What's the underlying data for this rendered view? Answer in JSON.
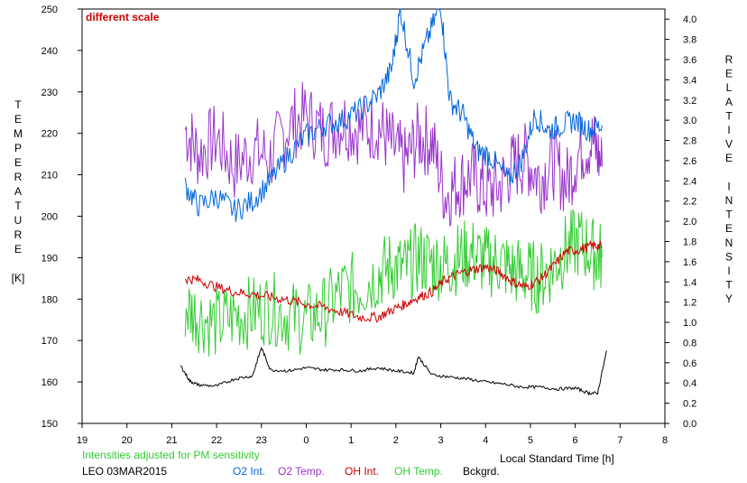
{
  "chart_data": {
    "type": "line",
    "annotation": "different scale",
    "left_axis_label": [
      "T",
      "E",
      "M",
      "P",
      "E",
      "R",
      "A",
      "T",
      "U",
      "R",
      "E",
      "",
      "[K]"
    ],
    "right_axis_label": [
      "R",
      "E",
      "L",
      "A",
      "T",
      "I",
      "V",
      "E",
      "",
      "I",
      "N",
      "T",
      "E",
      "N",
      "S",
      "I",
      "T",
      "Y"
    ],
    "xlabel": "Local Standard Time [h]",
    "x_ticks": [
      "19",
      "20",
      "21",
      "22",
      "23",
      "0",
      "1",
      "2",
      "3",
      "4",
      "5",
      "6",
      "7",
      "8"
    ],
    "x_tick_values": [
      19,
      20,
      21,
      22,
      23,
      24,
      25,
      26,
      27,
      28,
      29,
      30,
      31,
      32
    ],
    "xlim": [
      19,
      32
    ],
    "ylim_left": [
      150,
      250
    ],
    "y_ticks_left": [
      150,
      160,
      170,
      180,
      190,
      200,
      210,
      220,
      230,
      240,
      250
    ],
    "ylim_right": [
      0.0,
      4.1
    ],
    "y_ticks_right": [
      "0.0",
      "0.2",
      "0.4",
      "0.6",
      "0.8",
      "1.0",
      "1.2",
      "1.4",
      "1.6",
      "1.8",
      "2.0",
      "2.2",
      "2.4",
      "2.6",
      "2.8",
      "3.0",
      "3.2",
      "3.4",
      "3.6",
      "3.8",
      "4.0"
    ],
    "note": "Intensities adjusted for PM sensitivity",
    "station": "LEO 03MAR2015",
    "series": [
      {
        "name": "O2 Int.",
        "color": "#0066dd",
        "axis": "right",
        "x": [
          21.3,
          21.6,
          22.0,
          22.4,
          22.8,
          23.2,
          23.6,
          24.0,
          24.4,
          24.8,
          25.2,
          25.6,
          25.9,
          26.1,
          26.4,
          26.7,
          27.0,
          27.2,
          27.5,
          27.8,
          28.1,
          28.5,
          28.8,
          29.1,
          29.4,
          29.7,
          30.0,
          30.3,
          30.6
        ],
        "y": [
          2.35,
          2.15,
          2.25,
          2.1,
          2.2,
          2.4,
          2.65,
          2.85,
          2.95,
          3.0,
          3.1,
          3.25,
          3.5,
          4.1,
          3.4,
          3.8,
          4.15,
          3.2,
          3.05,
          2.7,
          2.65,
          2.4,
          2.6,
          3.05,
          2.9,
          2.95,
          3.0,
          2.9,
          2.95
        ]
      },
      {
        "name": "O2 Temp.",
        "color": "#9933cc",
        "axis": "left",
        "x": [
          21.3,
          21.6,
          22.0,
          22.4,
          22.8,
          23.2,
          23.6,
          24.0,
          24.4,
          24.8,
          25.2,
          25.6,
          25.9,
          26.2,
          26.5,
          26.8,
          27.1,
          27.4,
          27.7,
          28.0,
          28.3,
          28.6,
          28.9,
          29.2,
          29.5,
          29.8,
          30.1,
          30.4,
          30.6
        ],
        "y": [
          221,
          215,
          219,
          212,
          216,
          214,
          222,
          224,
          220,
          223,
          221,
          222,
          217,
          213,
          219,
          218,
          205,
          208,
          210,
          206,
          207,
          212,
          214,
          209,
          213,
          208,
          216,
          218,
          212
        ]
      },
      {
        "name": "OH Int.",
        "color": "#cc0000",
        "axis": "right",
        "x": [
          21.3,
          21.6,
          22.0,
          22.4,
          22.8,
          23.2,
          23.6,
          24.0,
          24.4,
          24.8,
          25.2,
          25.6,
          25.9,
          26.2,
          26.5,
          26.8,
          27.1,
          27.4,
          27.7,
          28.0,
          28.3,
          28.6,
          28.9,
          29.2,
          29.5,
          29.8,
          30.1,
          30.4,
          30.6
        ],
        "y": [
          1.43,
          1.42,
          1.35,
          1.3,
          1.28,
          1.25,
          1.22,
          1.18,
          1.15,
          1.1,
          1.05,
          1.05,
          1.12,
          1.18,
          1.25,
          1.3,
          1.42,
          1.48,
          1.52,
          1.55,
          1.5,
          1.4,
          1.35,
          1.42,
          1.55,
          1.7,
          1.72,
          1.76,
          1.75
        ]
      },
      {
        "name": "OH Temp.",
        "color": "#33cc33",
        "axis": "left",
        "x": [
          21.3,
          21.6,
          22.0,
          22.4,
          22.8,
          23.2,
          23.6,
          24.0,
          24.4,
          24.8,
          25.2,
          25.6,
          25.9,
          26.2,
          26.5,
          26.8,
          27.1,
          27.4,
          27.7,
          28.0,
          28.3,
          28.6,
          28.9,
          29.2,
          29.5,
          29.8,
          30.1,
          30.4,
          30.6
        ],
        "y": [
          178,
          176,
          174,
          176,
          177,
          178,
          176,
          175,
          177,
          182,
          183,
          186,
          188,
          187,
          190,
          189,
          188,
          190,
          191,
          189,
          189,
          187,
          186,
          185,
          188,
          192,
          194,
          191,
          190
        ]
      },
      {
        "name": "Bckgrd.",
        "color": "#000000",
        "axis": "right",
        "x": [
          21.2,
          21.4,
          21.6,
          22.0,
          22.4,
          22.8,
          23.0,
          23.2,
          23.6,
          24.0,
          24.4,
          24.8,
          25.2,
          25.6,
          26.0,
          26.4,
          26.5,
          26.8,
          27.2,
          27.6,
          28.0,
          28.4,
          28.8,
          29.2,
          29.6,
          30.0,
          30.3,
          30.5,
          30.7
        ],
        "y": [
          0.57,
          0.42,
          0.38,
          0.37,
          0.44,
          0.47,
          0.75,
          0.53,
          0.52,
          0.55,
          0.53,
          0.53,
          0.52,
          0.55,
          0.52,
          0.5,
          0.66,
          0.48,
          0.46,
          0.44,
          0.41,
          0.39,
          0.36,
          0.36,
          0.34,
          0.35,
          0.3,
          0.3,
          0.72
        ]
      }
    ]
  }
}
